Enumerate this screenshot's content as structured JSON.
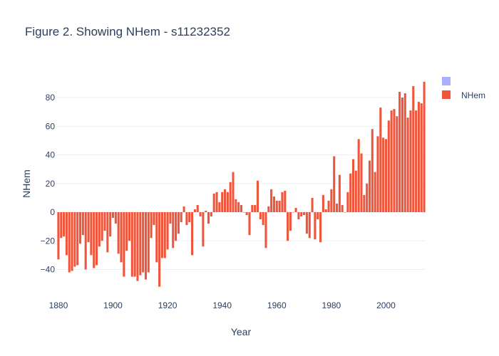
{
  "chart_data": {
    "type": "bar",
    "title": "Figure 2. Showing NHem - s11232352",
    "xlabel": "Year",
    "ylabel": "NHem",
    "xlim": [
      1880,
      2014
    ],
    "ylim": [
      -60,
      100
    ],
    "x_ticks": [
      1880,
      1900,
      1920,
      1940,
      1960,
      1980,
      2000
    ],
    "y_ticks": [
      -40,
      -20,
      0,
      20,
      40,
      60,
      80
    ],
    "grid": true,
    "legend_position": "top-right",
    "legend": [
      {
        "name": "",
        "color": "#aab0ff"
      },
      {
        "name": "NHem",
        "color": "#ef553b"
      }
    ],
    "series": [
      {
        "name": "NHem",
        "color": "#ef553b",
        "x": [
          1880,
          1881,
          1882,
          1883,
          1884,
          1885,
          1886,
          1887,
          1888,
          1889,
          1890,
          1891,
          1892,
          1893,
          1894,
          1895,
          1896,
          1897,
          1898,
          1899,
          1900,
          1901,
          1902,
          1903,
          1904,
          1905,
          1906,
          1907,
          1908,
          1909,
          1910,
          1911,
          1912,
          1913,
          1914,
          1915,
          1916,
          1917,
          1918,
          1919,
          1920,
          1921,
          1922,
          1923,
          1924,
          1925,
          1926,
          1927,
          1928,
          1929,
          1930,
          1931,
          1932,
          1933,
          1934,
          1935,
          1936,
          1937,
          1938,
          1939,
          1940,
          1941,
          1942,
          1943,
          1944,
          1945,
          1946,
          1947,
          1948,
          1949,
          1950,
          1951,
          1952,
          1953,
          1954,
          1955,
          1956,
          1957,
          1958,
          1959,
          1960,
          1961,
          1962,
          1963,
          1964,
          1965,
          1966,
          1967,
          1968,
          1969,
          1970,
          1971,
          1972,
          1973,
          1974,
          1975,
          1976,
          1977,
          1978,
          1979,
          1980,
          1981,
          1982,
          1983,
          1984,
          1985,
          1986,
          1987,
          1988,
          1989,
          1990,
          1991,
          1992,
          1993,
          1994,
          1995,
          1996,
          1997,
          1998,
          1999,
          2000,
          2001,
          2002,
          2003,
          2004,
          2005,
          2006,
          2007,
          2008,
          2009,
          2010,
          2011,
          2012,
          2013,
          2014
        ],
        "values": [
          -33,
          -18,
          -17,
          -30,
          -42,
          -41,
          -38,
          -37,
          -22,
          -16,
          -40,
          -21,
          -30,
          -39,
          -37,
          -24,
          -20,
          -13,
          -28,
          -17,
          -4,
          -8,
          -29,
          -35,
          -45,
          -27,
          -20,
          -45,
          -45,
          -48,
          -44,
          -42,
          -47,
          -42,
          -18,
          -9,
          -35,
          -52,
          -32,
          -32,
          -26,
          -8,
          -25,
          -20,
          -15,
          -7,
          4,
          -9,
          -7,
          -30,
          2,
          5,
          -3,
          -24,
          1,
          -8,
          -3,
          13,
          14,
          7,
          14,
          16,
          14,
          21,
          28,
          9,
          7,
          5,
          0,
          -2,
          -16,
          5,
          5,
          22,
          -5,
          -9,
          -25,
          4,
          16,
          11,
          8,
          8,
          14,
          15,
          -20,
          -13,
          0,
          3,
          -5,
          -3,
          -2,
          -15,
          -18,
          10,
          -19,
          -5,
          -21,
          12,
          2,
          8,
          16,
          39,
          6,
          26,
          5,
          0,
          14,
          27,
          37,
          29,
          51,
          41,
          12,
          20,
          36,
          58,
          28,
          53,
          73,
          52,
          51,
          64,
          71,
          72,
          67,
          84,
          80,
          83,
          66,
          71,
          88,
          71,
          77,
          76,
          91
        ]
      }
    ]
  }
}
